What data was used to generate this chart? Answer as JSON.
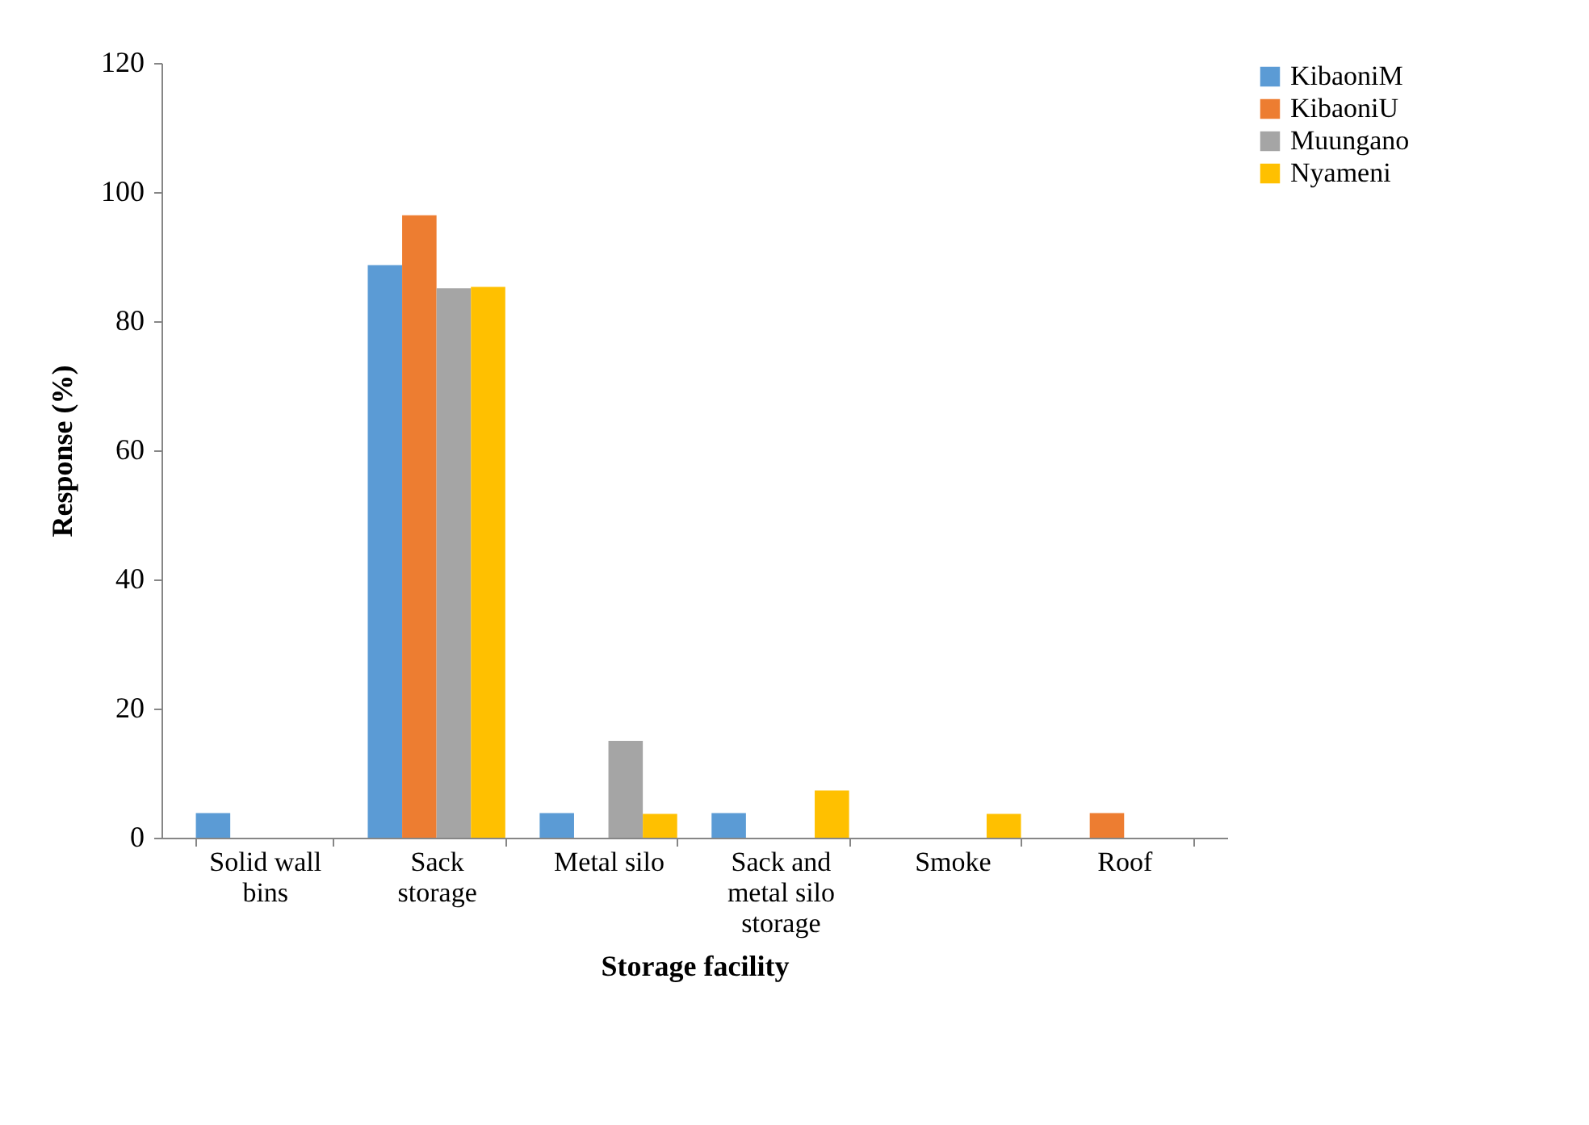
{
  "chart_data": {
    "type": "bar",
    "xlabel": "Storage facility",
    "ylabel": "Response (%)",
    "categories": [
      "Solid wall bins",
      "Sack storage",
      "Metal silo",
      "Sack and metal silo storage",
      "Smoke",
      "Roof"
    ],
    "series": [
      {
        "name": "KibaoniM",
        "color": "#5b9bd5",
        "values": [
          3.8,
          88.7,
          3.8,
          3.8,
          0,
          0
        ]
      },
      {
        "name": "KibaoniU",
        "color": "#ed7d31",
        "values": [
          0,
          96.4,
          0,
          0,
          0,
          3.8
        ]
      },
      {
        "name": "Muungano",
        "color": "#a5a5a5",
        "values": [
          0,
          85.1,
          15,
          0,
          0,
          0
        ]
      },
      {
        "name": "Nyameni",
        "color": "#ffc000",
        "values": [
          0,
          85.3,
          3.7,
          7.3,
          3.7,
          0
        ]
      }
    ],
    "ylim": [
      0,
      120
    ],
    "yticks": [
      0,
      20,
      40,
      60,
      80,
      100,
      120
    ],
    "grid": false,
    "legend": "right"
  }
}
